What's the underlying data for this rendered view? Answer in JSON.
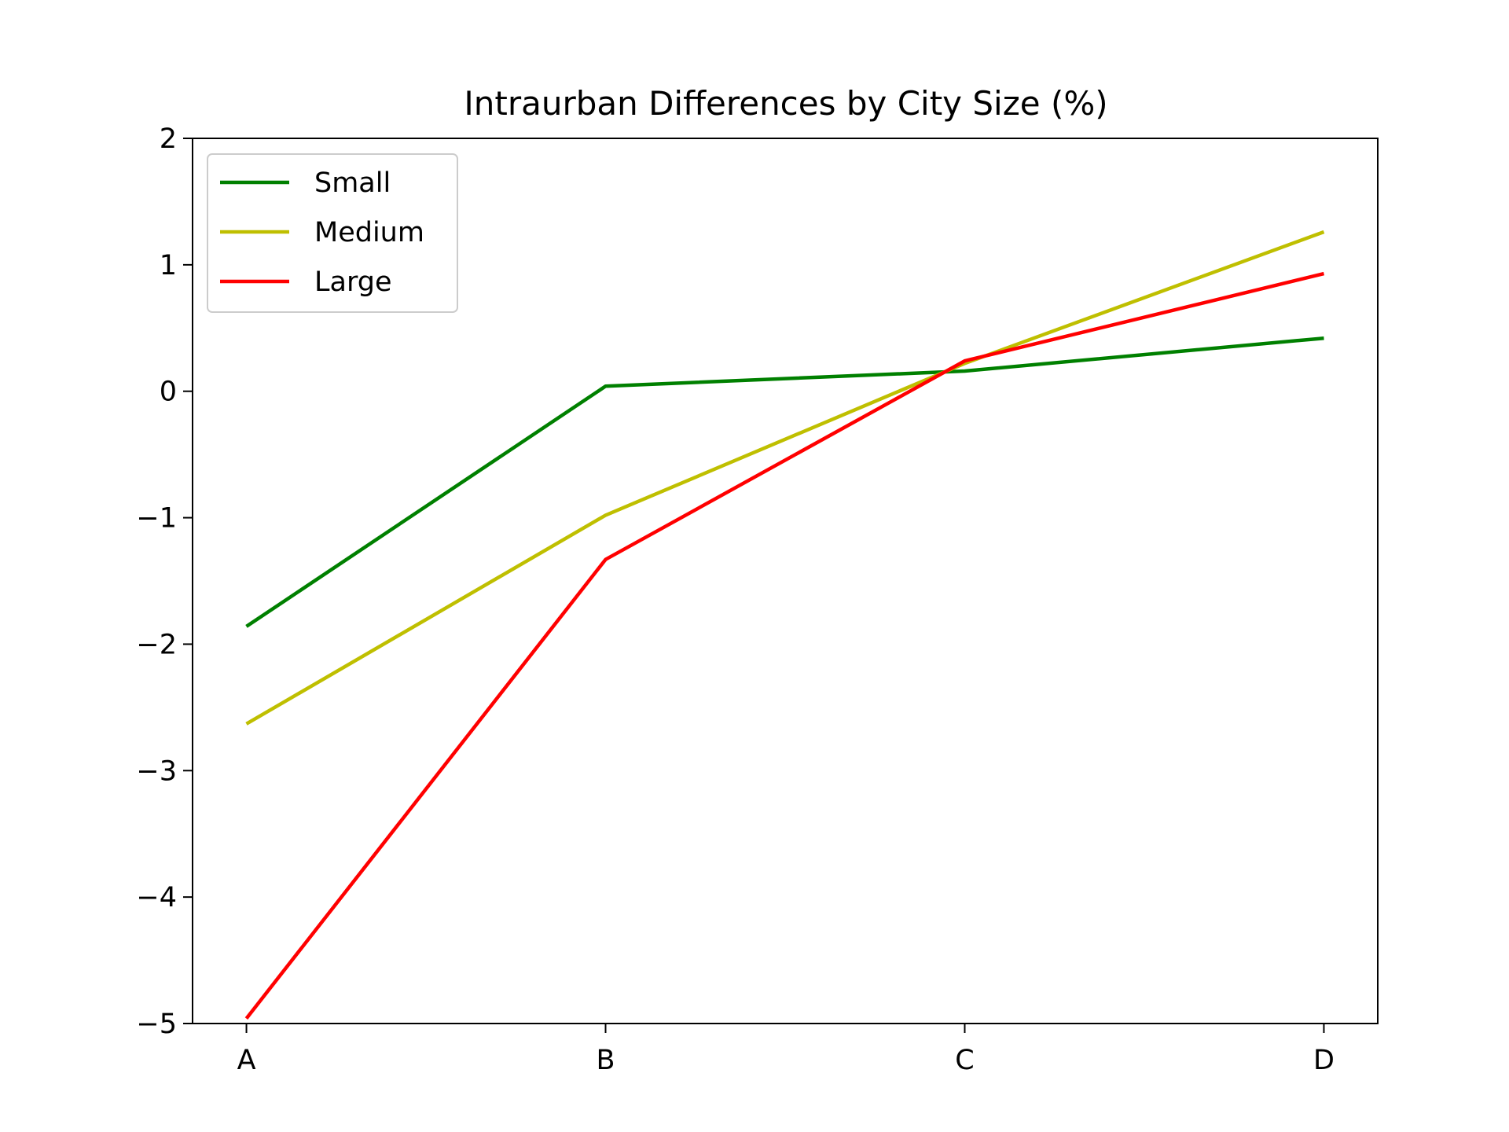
{
  "chart_data": {
    "type": "line",
    "title": "Intraurban Differences by City Size (%)",
    "xlabel": "",
    "ylabel": "",
    "categories": [
      "A",
      "B",
      "C",
      "D"
    ],
    "ylim": [
      -5,
      2
    ],
    "yticks": [
      2,
      1,
      0,
      -1,
      -2,
      -3,
      -4,
      -5
    ],
    "ytick_labels": [
      "2",
      "1",
      "0",
      "−1",
      "−2",
      "−3",
      "−4",
      "−5"
    ],
    "grid": false,
    "legend_position": "top-left",
    "series": [
      {
        "name": "Small",
        "color": "#008000",
        "values": [
          -1.86,
          0.04,
          0.16,
          0.42
        ]
      },
      {
        "name": "Medium",
        "color": "#bfbf00",
        "values": [
          -2.63,
          -0.98,
          0.22,
          1.26
        ]
      },
      {
        "name": "Large",
        "color": "#ff0000",
        "values": [
          -4.96,
          -1.33,
          0.24,
          0.93
        ]
      }
    ]
  }
}
